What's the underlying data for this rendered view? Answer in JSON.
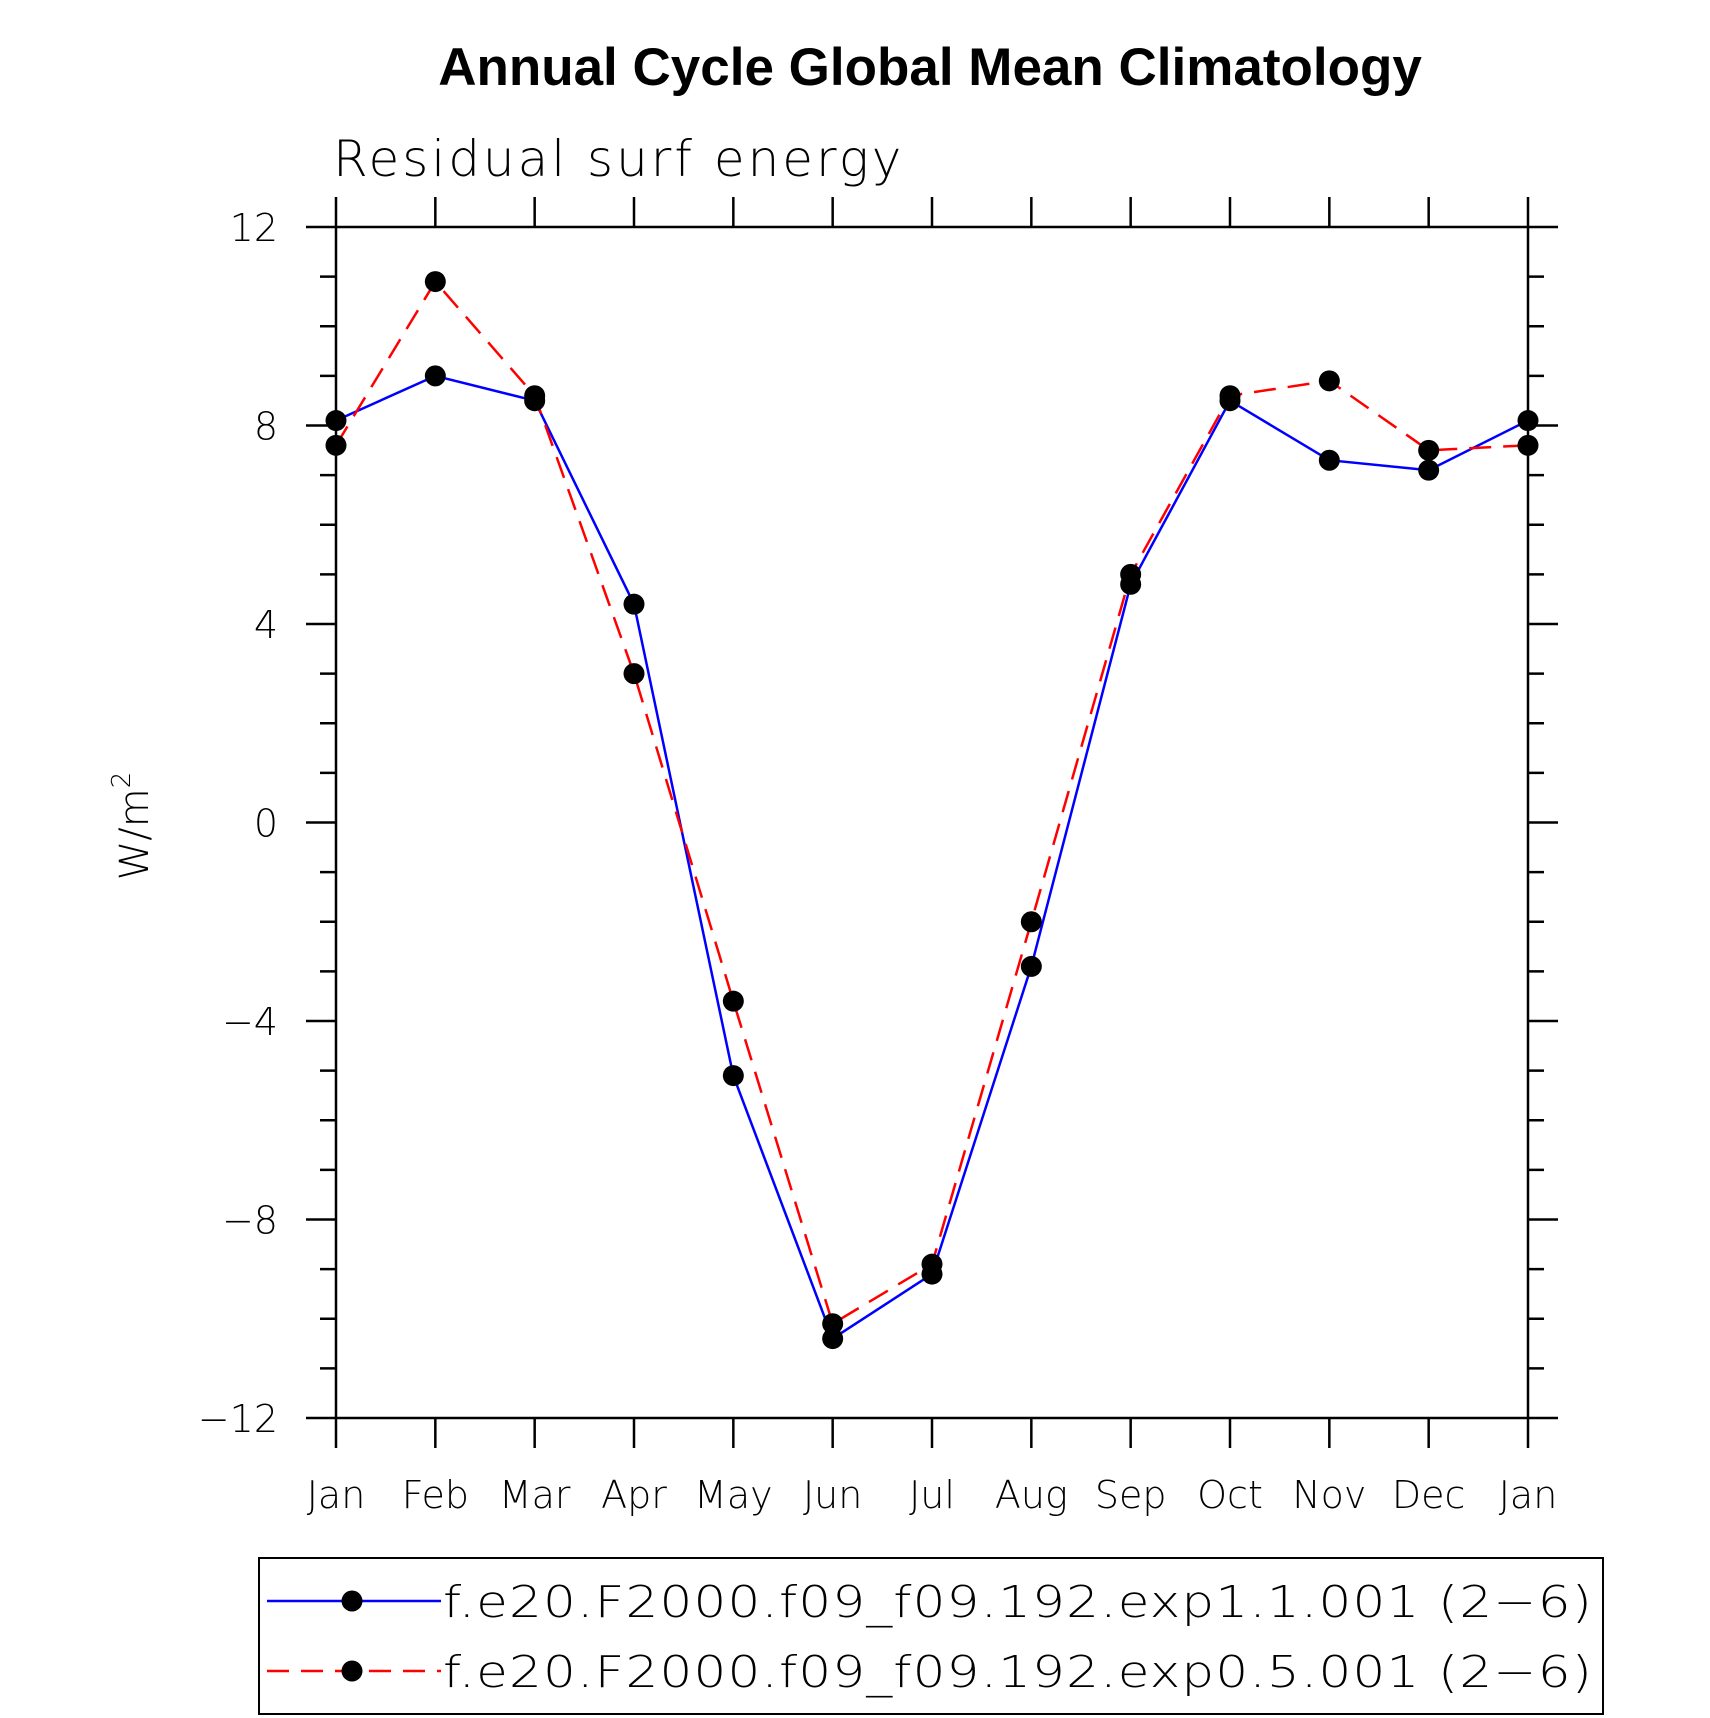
{
  "chart_data": {
    "type": "line",
    "title": "Annual Cycle Global Mean Climatology",
    "subtitle": "Residual surf energy",
    "ylabel": "W/m",
    "ylabel_superscript": "2",
    "xlabel": "",
    "categories": [
      "Jan",
      "Feb",
      "Mar",
      "Apr",
      "May",
      "Jun",
      "Jul",
      "Aug",
      "Sep",
      "Oct",
      "Nov",
      "Dec",
      "Jan"
    ],
    "ylim": [
      -12,
      12
    ],
    "yticks": [
      12,
      8,
      4,
      0,
      -4,
      -8,
      -12
    ],
    "ytick_labels": [
      "12",
      "8",
      "4",
      "0",
      "−4",
      "−8",
      "−12"
    ],
    "grid": false,
    "legend_position": "bottom",
    "marker": "filled-circle",
    "series": [
      {
        "name": "f.e20.F2000.f09_f09.192.exp1.1.001 (2−6)",
        "color": "#0000ff",
        "line_style": "solid",
        "values": [
          8.1,
          9.0,
          8.5,
          4.4,
          -5.1,
          -10.4,
          -9.1,
          -2.9,
          4.8,
          8.5,
          7.3,
          7.1,
          8.1
        ]
      },
      {
        "name": "f.e20.F2000.f09_f09.192.exp0.5.001 (2−6)",
        "color": "#ff0000",
        "line_style": "dashed",
        "values": [
          7.6,
          10.9,
          8.6,
          3.0,
          -3.6,
          -10.1,
          -8.9,
          -2.0,
          5.0,
          8.6,
          8.9,
          7.5,
          7.6
        ]
      }
    ]
  }
}
